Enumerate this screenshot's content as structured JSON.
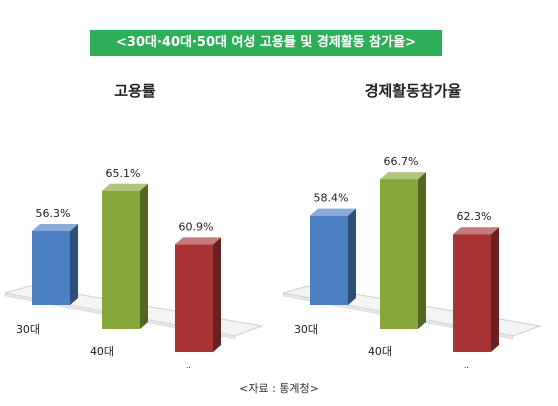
{
  "title": "<30대·40대·50대 여성 고용률 및 경제활동 참가율>",
  "source": "<자료 : 통계청>",
  "chart_data": [
    {
      "type": "bar",
      "title": "고용률",
      "categories": [
        "30대",
        "40대",
        "50대"
      ],
      "values": [
        56.3,
        65.1,
        60.9
      ],
      "value_labels": [
        "56.3%",
        "65.1%",
        "60.9%"
      ],
      "colors": [
        "#4a7fc1",
        "#86a63a",
        "#a83333"
      ],
      "grid": false,
      "legend": "none"
    },
    {
      "type": "bar",
      "title": "경제활동참가율",
      "categories": [
        "30대",
        "40대",
        "50대"
      ],
      "values": [
        58.4,
        66.7,
        62.3
      ],
      "value_labels": [
        "58.4%",
        "66.7%",
        "62.3%"
      ],
      "colors": [
        "#4a7fc1",
        "#86a63a",
        "#a83333"
      ],
      "grid": false,
      "legend": "none"
    }
  ]
}
